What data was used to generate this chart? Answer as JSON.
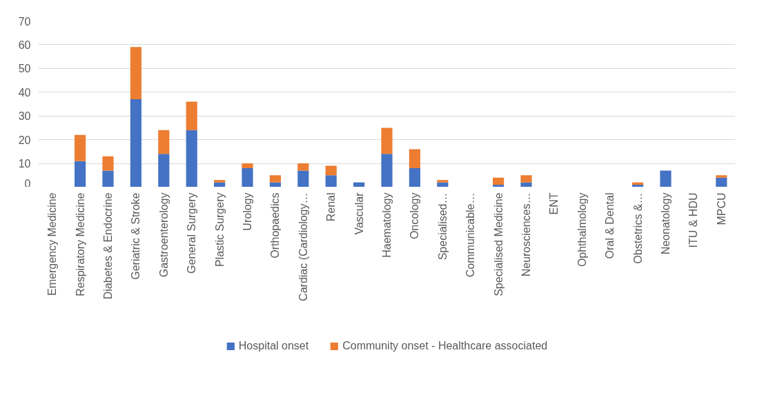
{
  "chart_data": {
    "type": "bar",
    "stacked": true,
    "categories": [
      "Emergency Medicine",
      "Respiratory Medicine",
      "Diabetes & Endocrine",
      "Geriatric & Stroke",
      "Gastroenterology",
      "General Surgery",
      "Plastic Surgery",
      "Urology",
      "Orthopaedics",
      "Cardiac (Cardiology…",
      "Renal",
      "Vascular",
      "Haematology",
      "Oncology",
      "Specialised…",
      "Communicable…",
      "Specialised Medicine",
      "Neurosciences…",
      "ENT",
      "Ophthalmology",
      "Oral & Dental",
      "Obstetrics &…",
      "Neonatology",
      "ITU & HDU",
      "MPCU"
    ],
    "series": [
      {
        "name": "Hospital onset",
        "color": "#4472c4",
        "values": [
          0,
          11,
          7,
          37,
          14,
          24,
          2,
          8,
          2,
          7,
          5,
          2,
          14,
          8,
          2,
          0,
          1,
          2,
          0,
          0,
          0,
          1,
          7,
          0,
          4
        ]
      },
      {
        "name": "Community onset - Healthcare associated",
        "color": "#ed7d31",
        "values": [
          0,
          11,
          6,
          22,
          10,
          12,
          1,
          2,
          3,
          3,
          4,
          0,
          11,
          8,
          1,
          0,
          3,
          3,
          0,
          0,
          0,
          1,
          0,
          0,
          1
        ]
      }
    ],
    "ylim": [
      0,
      70
    ],
    "yticks": [
      0,
      10,
      20,
      30,
      40,
      50,
      60,
      70
    ],
    "grid": "y",
    "legend": "bottom"
  }
}
